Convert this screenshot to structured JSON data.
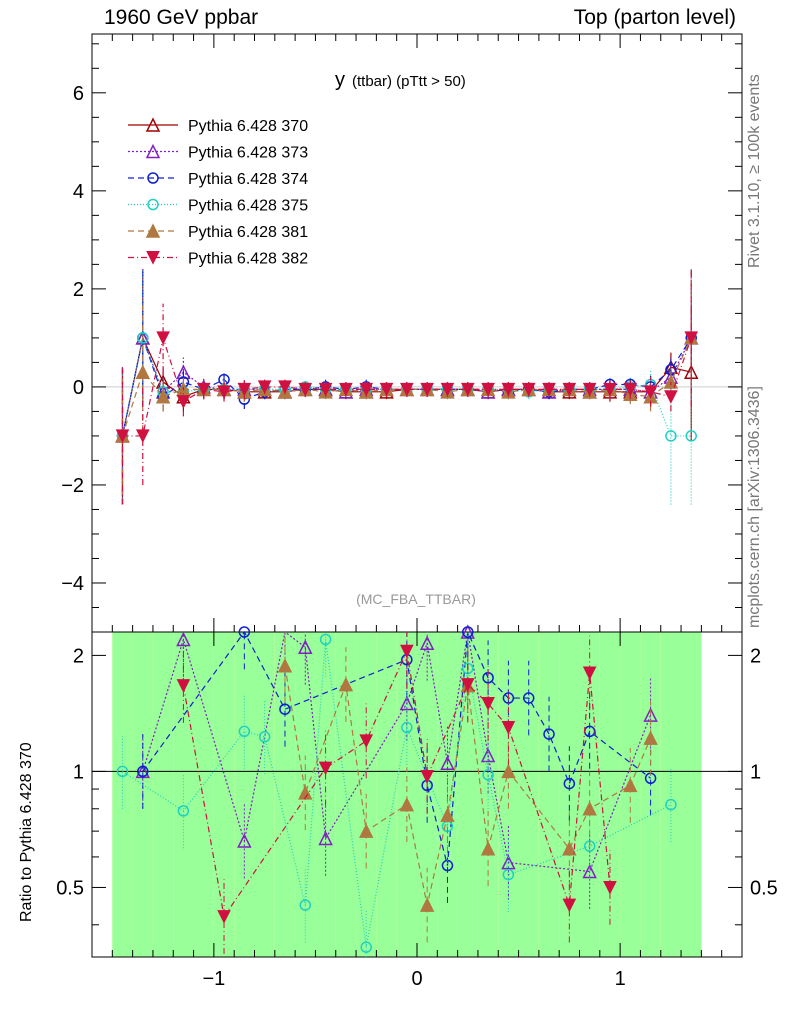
{
  "header": {
    "left": "1960 GeV ppbar",
    "right": "Top (parton level)",
    "side_rivet": "Rivet 3.1.10, ≥ 100k events",
    "side_mcplots": "mcplots.cern.ch [arXiv:1306.3436]"
  },
  "chart_data": {
    "type": "line",
    "title_main": "y",
    "title_sub": "(ttbar)  (pTtt > 50)",
    "watermark": "(MC_FBA_TTBAR)",
    "xlabel": "",
    "ylabel": "",
    "ratio_ylabel": "Ratio to Pythia 6.428 370",
    "xlim": [
      -1.6,
      1.6
    ],
    "ylim": [
      -5.0,
      7.2
    ],
    "ratio_ylim": [
      0.33,
      2.3
    ],
    "x_ticks": [
      -1,
      0,
      1
    ],
    "x_tick_labels": [
      "−1",
      "0",
      "1"
    ],
    "y_ticks": [
      -4,
      -2,
      0,
      2,
      4,
      6
    ],
    "y_tick_labels": [
      "−4",
      "−2",
      "0",
      "2",
      "4",
      "6"
    ],
    "ratio_ticks": [
      0.5,
      1,
      2
    ],
    "ratio_tick_labels": [
      "0.5",
      "1",
      "2"
    ],
    "legend_position": "top-left",
    "x": [
      -1.45,
      -1.35,
      -1.25,
      -1.15,
      -1.05,
      -0.95,
      -0.85,
      -0.75,
      -0.65,
      -0.55,
      -0.45,
      -0.35,
      -0.25,
      -0.15,
      -0.05,
      0.05,
      0.15,
      0.25,
      0.35,
      0.45,
      0.55,
      0.65,
      0.75,
      0.85,
      0.95,
      1.05,
      1.15,
      1.25,
      1.35
    ],
    "series": [
      {
        "name": "Pythia 6.428 370",
        "color": "#a00000",
        "marker": "triangle-open",
        "dash": "",
        "values": [
          -1.0,
          1.0,
          0.1,
          -0.2,
          -0.05,
          -0.05,
          -0.1,
          -0.1,
          -0.1,
          -0.05,
          -0.05,
          -0.1,
          -0.1,
          -0.1,
          -0.05,
          -0.05,
          -0.05,
          -0.05,
          -0.1,
          -0.05,
          -0.05,
          -0.1,
          -0.1,
          -0.1,
          -0.1,
          -0.1,
          -0.1,
          0.4,
          0.3
        ],
        "err": [
          1.4,
          1.4,
          0.3,
          0.3,
          0.2,
          0.2,
          0.2,
          0.15,
          0.15,
          0.15,
          0.15,
          0.15,
          0.15,
          0.15,
          0.15,
          0.15,
          0.15,
          0.15,
          0.15,
          0.15,
          0.15,
          0.15,
          0.15,
          0.15,
          0.2,
          0.2,
          0.3,
          0.3,
          1.4
        ]
      },
      {
        "name": "Pythia 6.428 373",
        "color": "#8020c0",
        "marker": "triangle-open",
        "dash": "2,2",
        "values": [
          -1.0,
          1.0,
          -0.1,
          0.3,
          0.0,
          -0.05,
          -0.05,
          -0.05,
          -0.1,
          -0.05,
          -0.05,
          -0.1,
          -0.05,
          -0.05,
          -0.05,
          -0.05,
          -0.05,
          -0.05,
          -0.1,
          -0.05,
          -0.05,
          -0.1,
          -0.05,
          -0.05,
          -0.05,
          -0.05,
          -0.1,
          0.2,
          1.0
        ],
        "err": [
          1.4,
          1.4,
          0.3,
          0.3,
          0.2,
          0.2,
          0.2,
          0.15,
          0.15,
          0.15,
          0.15,
          0.15,
          0.15,
          0.15,
          0.15,
          0.15,
          0.15,
          0.15,
          0.15,
          0.15,
          0.15,
          0.15,
          0.15,
          0.15,
          0.2,
          0.2,
          0.3,
          0.3,
          1.4
        ]
      },
      {
        "name": "Pythia 6.428 374",
        "color": "#1020d0",
        "marker": "circle-open",
        "dash": "6,4",
        "values": [
          -1.0,
          1.0,
          -0.2,
          0.1,
          -0.05,
          0.15,
          -0.25,
          -0.1,
          -0.05,
          -0.05,
          0.0,
          -0.05,
          0.0,
          -0.05,
          -0.05,
          -0.05,
          -0.05,
          -0.05,
          -0.05,
          -0.1,
          -0.05,
          -0.1,
          -0.05,
          -0.05,
          0.05,
          0.05,
          0.0,
          0.35,
          1.0
        ],
        "err": [
          1.4,
          1.4,
          0.3,
          0.3,
          0.2,
          0.2,
          0.2,
          0.15,
          0.15,
          0.15,
          0.15,
          0.15,
          0.15,
          0.15,
          0.15,
          0.15,
          0.15,
          0.15,
          0.15,
          0.15,
          0.15,
          0.15,
          0.15,
          0.15,
          0.2,
          0.2,
          0.3,
          0.3,
          1.4
        ]
      },
      {
        "name": "Pythia 6.428 375",
        "color": "#20d0c0",
        "marker": "circle-open",
        "dash": "1,2",
        "values": [
          -1.0,
          1.0,
          -0.1,
          -0.1,
          -0.05,
          -0.05,
          -0.05,
          -0.05,
          -0.05,
          0.0,
          -0.05,
          -0.05,
          -0.05,
          -0.05,
          -0.05,
          -0.05,
          -0.05,
          -0.05,
          -0.05,
          -0.05,
          -0.1,
          -0.05,
          -0.05,
          -0.05,
          -0.05,
          0.0,
          0.05,
          -1.0,
          -1.0
        ],
        "err": [
          1.4,
          1.4,
          0.3,
          0.3,
          0.2,
          0.2,
          0.2,
          0.15,
          0.15,
          0.15,
          0.15,
          0.15,
          0.15,
          0.15,
          0.15,
          0.15,
          0.15,
          0.15,
          0.15,
          0.15,
          0.15,
          0.15,
          0.15,
          0.15,
          0.2,
          0.2,
          0.3,
          1.4,
          1.4
        ]
      },
      {
        "name": "Pythia 6.428 381",
        "color": "#b07840",
        "marker": "triangle-filled",
        "dash": "6,4",
        "values": [
          -1.0,
          0.3,
          -0.2,
          -0.05,
          -0.05,
          -0.05,
          -0.1,
          -0.05,
          -0.1,
          -0.05,
          -0.1,
          -0.05,
          -0.1,
          -0.05,
          -0.05,
          -0.05,
          -0.1,
          -0.05,
          -0.05,
          -0.1,
          -0.05,
          -0.05,
          -0.05,
          -0.1,
          -0.05,
          -0.15,
          -0.2,
          0.1,
          1.0
        ],
        "err": [
          1.4,
          1.4,
          0.3,
          0.3,
          0.2,
          0.2,
          0.2,
          0.15,
          0.15,
          0.15,
          0.15,
          0.15,
          0.15,
          0.15,
          0.15,
          0.15,
          0.15,
          0.15,
          0.15,
          0.15,
          0.15,
          0.15,
          0.15,
          0.15,
          0.2,
          0.2,
          0.3,
          0.3,
          1.4
        ]
      },
      {
        "name": "Pythia 6.428 382",
        "color": "#d01040",
        "marker": "triangle-down-filled",
        "dash": "6,3,1,3",
        "values": [
          -1.0,
          -1.0,
          1.0,
          -0.3,
          -0.05,
          -0.1,
          -0.05,
          0.0,
          0.0,
          -0.05,
          -0.05,
          -0.05,
          -0.05,
          -0.05,
          -0.05,
          -0.05,
          -0.05,
          -0.05,
          -0.05,
          -0.05,
          -0.05,
          -0.05,
          -0.05,
          -0.05,
          -0.05,
          -0.05,
          -0.1,
          -0.2,
          1.0
        ],
        "err": [
          1.4,
          1.0,
          0.7,
          0.3,
          0.2,
          0.2,
          0.2,
          0.15,
          0.15,
          0.15,
          0.15,
          0.15,
          0.15,
          0.15,
          0.15,
          0.15,
          0.15,
          0.15,
          0.15,
          0.15,
          0.15,
          0.15,
          0.15,
          0.15,
          0.2,
          0.2,
          0.3,
          0.3,
          1.4
        ]
      }
    ],
    "ratio": {
      "band_yellow": [
        [
          0.33,
          2.3
        ],
        [
          0.33,
          2.3
        ],
        [
          0.33,
          2.3
        ],
        [
          0.33,
          2.3
        ],
        [
          0.33,
          2.3
        ],
        [
          0.33,
          2.3
        ],
        [
          0.33,
          2.3
        ],
        [
          0.33,
          2.3
        ],
        [
          0.33,
          2.3
        ],
        [
          0.33,
          2.3
        ],
        [
          0.33,
          2.3
        ],
        [
          0.33,
          2.3
        ],
        [
          0.33,
          2.3
        ],
        [
          0.33,
          2.3
        ],
        [
          0.33,
          2.3
        ],
        [
          0.33,
          2.3
        ],
        [
          0.33,
          2.3
        ],
        [
          0.33,
          2.3
        ],
        [
          0.33,
          2.3
        ],
        [
          0.33,
          2.3
        ],
        [
          0.33,
          2.3
        ],
        [
          0.33,
          2.3
        ],
        [
          0.33,
          2.3
        ],
        [
          0.33,
          2.3
        ],
        [
          0.33,
          2.3
        ],
        [
          0.33,
          2.3
        ],
        [
          0.33,
          2.3
        ],
        [
          0.33,
          2.3
        ],
        [
          0.33,
          2.3
        ]
      ],
      "band_green": [
        [
          0.33,
          2.3
        ],
        [
          0.33,
          2.3
        ],
        [
          0.33,
          2.3
        ],
        [
          0.33,
          2.3
        ],
        [
          0.33,
          2.3
        ],
        [
          0.33,
          2.3
        ],
        [
          0.33,
          2.3
        ],
        [
          0.33,
          2.3
        ],
        [
          0.33,
          2.3
        ],
        [
          0.33,
          2.3
        ],
        [
          0.33,
          2.3
        ],
        [
          0.33,
          2.3
        ],
        [
          0.33,
          2.3
        ],
        [
          0.33,
          2.3
        ],
        [
          0.33,
          2.3
        ],
        [
          0.33,
          2.3
        ],
        [
          0.33,
          2.3
        ],
        [
          0.33,
          2.3
        ],
        [
          0.33,
          2.3
        ],
        [
          0.33,
          2.3
        ],
        [
          0.33,
          2.3
        ],
        [
          0.33,
          2.3
        ],
        [
          0.33,
          2.3
        ],
        [
          0.33,
          2.3
        ],
        [
          0.33,
          2.3
        ],
        [
          0.33,
          2.3
        ],
        [
          0.33,
          2.3
        ],
        [
          0.33,
          2.3
        ],
        [
          0.33,
          2.3
        ]
      ],
      "series": [
        {
          "name": "Pythia 6.428 373",
          "values": [
            null,
            1.0,
            null,
            2.2,
            null,
            null,
            0.66,
            null,
            2.45,
            2.1,
            0.67,
            null,
            null,
            null,
            1.5,
            2.15,
            1.05,
            2.3,
            1.1,
            0.58,
            null,
            null,
            null,
            0.55,
            null,
            null,
            1.4,
            null,
            null
          ]
        },
        {
          "name": "Pythia 6.428 374",
          "values": [
            null,
            1.0,
            null,
            null,
            null,
            null,
            2.3,
            null,
            1.45,
            null,
            null,
            null,
            null,
            null,
            1.95,
            0.92,
            0.57,
            2.3,
            1.75,
            1.55,
            1.55,
            1.25,
            0.93,
            1.27,
            null,
            null,
            0.96,
            null,
            null
          ]
        },
        {
          "name": "Pythia 6.428 375",
          "values": [
            1.0,
            null,
            null,
            0.79,
            null,
            null,
            1.27,
            1.23,
            null,
            0.45,
            2.2,
            null,
            0.35,
            null,
            1.3,
            null,
            0.72,
            1.85,
            0.98,
            0.54,
            null,
            null,
            null,
            0.64,
            null,
            null,
            null,
            0.82,
            null
          ]
        },
        {
          "name": "Pythia 6.428 381",
          "values": [
            null,
            null,
            null,
            null,
            null,
            null,
            null,
            null,
            1.88,
            0.88,
            null,
            1.68,
            0.7,
            null,
            0.82,
            0.45,
            0.77,
            1.67,
            0.63,
            1.0,
            null,
            null,
            0.63,
            0.8,
            null,
            0.92,
            1.22,
            null,
            null
          ]
        },
        {
          "name": "Pythia 6.428 382",
          "values": [
            null,
            null,
            null,
            1.67,
            null,
            0.42,
            null,
            null,
            null,
            null,
            1.02,
            null,
            1.2,
            null,
            2.05,
            0.97,
            null,
            1.68,
            1.5,
            1.3,
            null,
            null,
            0.45,
            1.8,
            0.5,
            null,
            null,
            null,
            null
          ]
        }
      ]
    }
  }
}
